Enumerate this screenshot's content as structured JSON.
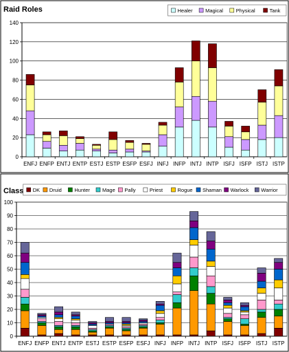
{
  "chart_data": [
    {
      "type": "bar",
      "stacked": true,
      "title": "Raid Roles",
      "xlabel": "",
      "ylabel": "",
      "ylim": [
        0,
        140
      ],
      "yticks": [
        0,
        20,
        40,
        60,
        80,
        100,
        120,
        140
      ],
      "grid": true,
      "legend_position": "top-right",
      "categories": [
        "ENFJ",
        "ENFP",
        "ENTJ",
        "ENTP",
        "ESTJ",
        "ESTP",
        "ESFP",
        "ESFJ",
        "INFJ",
        "INFP",
        "INTJ",
        "INTP",
        "ISFJ",
        "ISFP",
        "ISTJ",
        "ISTP"
      ],
      "series": [
        {
          "name": "Healer",
          "color": "#ccffff",
          "values": [
            23,
            9,
            6,
            7,
            6,
            4,
            5,
            5,
            11,
            31,
            38,
            31,
            10,
            7,
            18,
            20
          ]
        },
        {
          "name": "Magical",
          "color": "#cc99ff",
          "values": [
            25,
            7,
            6,
            7,
            2,
            3,
            3,
            1,
            12,
            21,
            25,
            27,
            11,
            11,
            15,
            23
          ]
        },
        {
          "name": "Physical",
          "color": "#ffff99",
          "values": [
            27,
            7,
            10,
            5,
            4,
            11,
            7,
            7,
            10,
            26,
            37,
            35,
            11,
            8,
            24,
            31
          ]
        },
        {
          "name": "Tank",
          "color": "#800000",
          "values": [
            11,
            3,
            5,
            2,
            1,
            8,
            2,
            1,
            3,
            15,
            21,
            25,
            5,
            6,
            13,
            17
          ]
        }
      ]
    },
    {
      "type": "bar",
      "stacked": true,
      "title": "Class",
      "xlabel": "",
      "ylabel": "",
      "ylim": [
        0,
        100
      ],
      "yticks": [
        0,
        10,
        20,
        30,
        40,
        50,
        60,
        70,
        80,
        90,
        100
      ],
      "grid": true,
      "legend_position": "top-right",
      "categories": [
        "ENFJ",
        "ENFP",
        "ENTJ",
        "ENTP",
        "ESTJ",
        "ESTP",
        "ESFP",
        "ESFJ",
        "INFJ",
        "INFP",
        "INTJ",
        "INTP",
        "ISFJ",
        "ISFP",
        "ISTJ",
        "ISTP"
      ],
      "series": [
        {
          "name": "DK",
          "color": "#800000",
          "values": [
            6,
            1,
            2,
            1,
            1,
            1,
            1,
            1,
            1,
            1,
            1,
            4,
            1,
            1,
            2,
            6
          ]
        },
        {
          "name": "Druid",
          "color": "#ff9900",
          "values": [
            13,
            7,
            3,
            4,
            2,
            5,
            3,
            5,
            8,
            20,
            33,
            20,
            10,
            7,
            12,
            9
          ]
        },
        {
          "name": "Hunter",
          "color": "#008000",
          "values": [
            5,
            2,
            2,
            2,
            1,
            1,
            1,
            1,
            1,
            4,
            11,
            8,
            2,
            1,
            4,
            5
          ]
        },
        {
          "name": "Mage",
          "color": "#33cccc",
          "values": [
            5,
            1,
            1,
            1,
            1,
            1,
            1,
            1,
            2,
            6,
            6,
            5,
            1,
            4,
            2,
            4
          ]
        },
        {
          "name": "Pally",
          "color": "#ff99cc",
          "values": [
            6,
            2,
            3,
            2,
            1,
            1,
            1,
            1,
            2,
            2,
            8,
            8,
            3,
            3,
            7,
            3
          ]
        },
        {
          "name": "Priest",
          "color": "#ffffff",
          "values": [
            8,
            1,
            2,
            2,
            2,
            0,
            1,
            1,
            3,
            6,
            9,
            7,
            4,
            2,
            5,
            9
          ]
        },
        {
          "name": "Rogue",
          "color": "#ffcc00",
          "values": [
            3,
            0,
            1,
            1,
            0,
            0,
            1,
            0,
            2,
            6,
            4,
            4,
            2,
            1,
            4,
            6
          ]
        },
        {
          "name": "Shaman",
          "color": "#0066cc",
          "values": [
            9,
            1,
            2,
            2,
            1,
            1,
            1,
            1,
            4,
            6,
            9,
            9,
            2,
            3,
            5,
            8
          ]
        },
        {
          "name": "Warlock",
          "color": "#800080",
          "values": [
            7,
            1,
            2,
            1,
            1,
            1,
            1,
            1,
            1,
            4,
            5,
            6,
            2,
            1,
            6,
            5
          ]
        },
        {
          "name": "Warrior",
          "color": "#666699",
          "values": [
            8,
            1,
            4,
            2,
            1,
            3,
            3,
            1,
            2,
            7,
            7,
            7,
            2,
            2,
            4,
            3
          ]
        }
      ]
    }
  ]
}
